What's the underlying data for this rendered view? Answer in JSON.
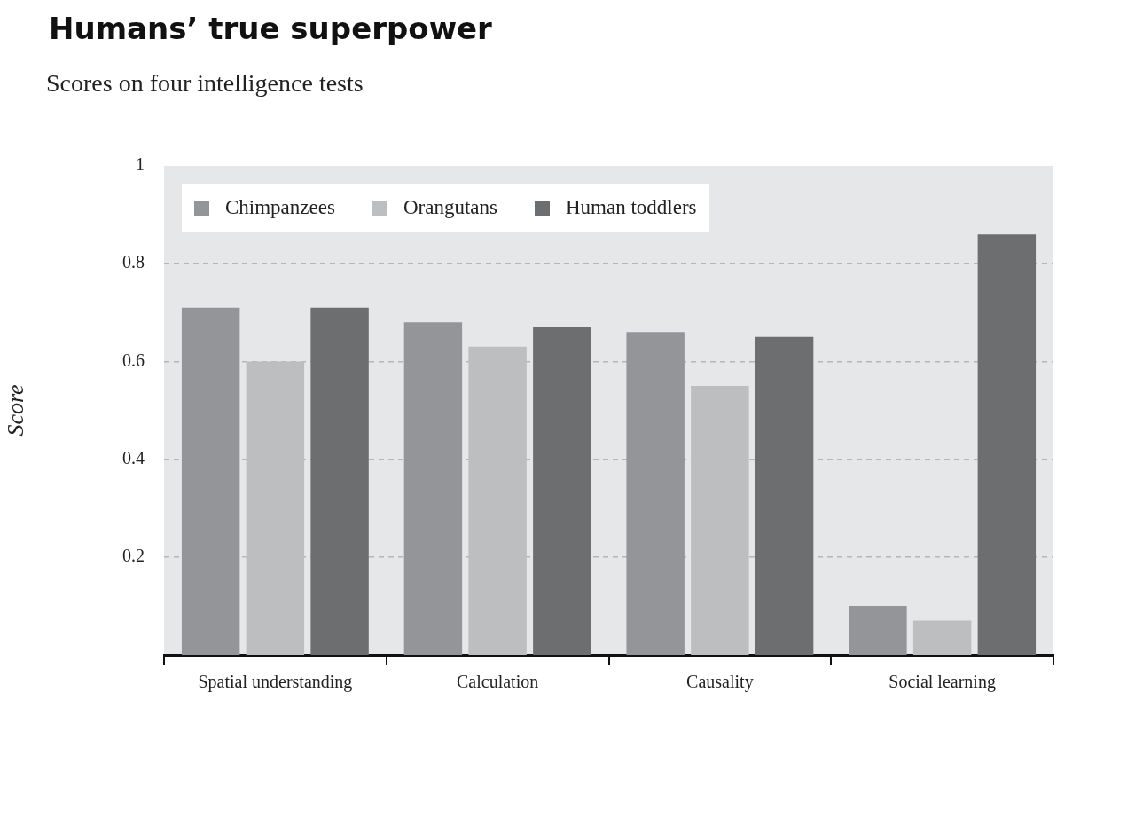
{
  "chart_data": {
    "type": "bar",
    "title": "Humans’ true superpower",
    "subtitle": "Scores on four intelligence tests",
    "ylabel": "Score",
    "categories": [
      "Spatial understanding",
      "Calculation",
      "Causality",
      "Social learning"
    ],
    "series": [
      {
        "name": "Chimpanzees",
        "color": "#939598",
        "values": [
          0.71,
          0.68,
          0.66,
          0.1
        ]
      },
      {
        "name": "Orangutans",
        "color": "#bcbec0",
        "values": [
          0.6,
          0.63,
          0.55,
          0.07
        ]
      },
      {
        "name": "Human toddlers",
        "color": "#6d6e70",
        "values": [
          0.71,
          0.67,
          0.65,
          0.86
        ]
      }
    ],
    "ylim": [
      0,
      1
    ],
    "yticks": [
      0.2,
      0.4,
      0.6,
      0.8,
      1
    ],
    "grid": "y",
    "legend": "top left"
  }
}
